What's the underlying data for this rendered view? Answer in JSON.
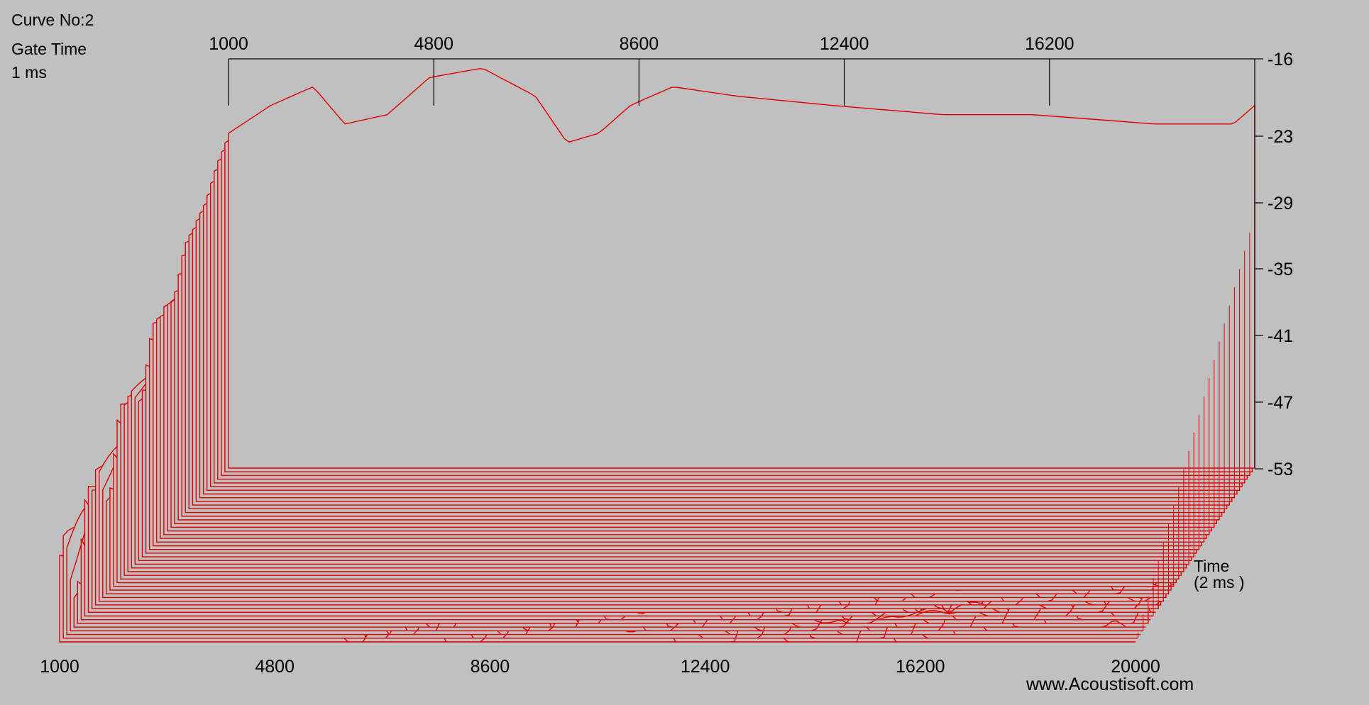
{
  "chart_data": {
    "type": "waterfall",
    "info": {
      "curve_label": "Curve No:2",
      "gate_label": "Gate Time",
      "gate_value": "1 ms"
    },
    "top_axis_ticks": [
      "1000",
      "4800",
      "8600",
      "12400",
      "16200"
    ],
    "bottom_axis_ticks": [
      "1000",
      "4800",
      "8600",
      "12400",
      "16200",
      "20000"
    ],
    "right_axis_ticks": [
      "-16",
      "-23",
      "-29",
      "-35",
      "-41",
      "-47",
      "-53"
    ],
    "time_label": "Time",
    "time_unit": "(2 ms )",
    "watermark": "www.Acoustisoft.com",
    "x_range": [
      1000,
      20000
    ],
    "y_range_db": [
      -60,
      -16
    ],
    "slice_count": 48,
    "front_response_db": [
      [
        1000,
        -24
      ],
      [
        1800,
        -21
      ],
      [
        2600,
        -19
      ],
      [
        3200,
        -23
      ],
      [
        4000,
        -22
      ],
      [
        4800,
        -18
      ],
      [
        5800,
        -17
      ],
      [
        6800,
        -20
      ],
      [
        7400,
        -25
      ],
      [
        8000,
        -24
      ],
      [
        8600,
        -21
      ],
      [
        9400,
        -19
      ],
      [
        10600,
        -20
      ],
      [
        12400,
        -21
      ],
      [
        14500,
        -22
      ],
      [
        16200,
        -22
      ],
      [
        18500,
        -23
      ],
      [
        20000,
        -23
      ],
      [
        20400,
        -21
      ]
    ],
    "line_color": "#e00000",
    "background": "#c0c0c0"
  }
}
